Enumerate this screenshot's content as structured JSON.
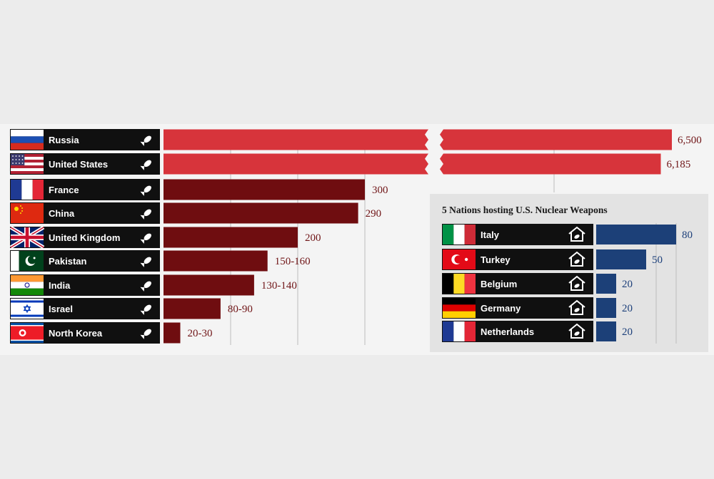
{
  "colors": {
    "background": "#ececec",
    "panel": "#f4f4f4",
    "inset_panel": "#e3e3e3",
    "label_bg": "#101010",
    "big_bar": "#d7343b",
    "bar": "#6f0d10",
    "bar_value_text": "#6f1416",
    "host_bar": "#1c4078",
    "host_value_text": "#1c3f7a",
    "gridline": "#bdbdbd"
  },
  "chart_data": [
    {
      "type": "bar",
      "orientation": "horizontal",
      "title": "",
      "categories": [
        "Russia",
        "United States",
        "France",
        "China",
        "United Kingdom",
        "Pakistan",
        "India",
        "Israel",
        "North Korea"
      ],
      "values": [
        6500,
        6185,
        300,
        290,
        200,
        155,
        135,
        85,
        25
      ],
      "value_labels": [
        "6,500",
        "6,185",
        "300",
        "290",
        "200",
        "150-160",
        "130-140",
        "80-90",
        "20-30"
      ],
      "highlight": [
        "Russia",
        "United States"
      ],
      "axis_broken": true,
      "row_icon": "nuclear-bomb-icon",
      "grid": true
    },
    {
      "type": "bar",
      "orientation": "horizontal",
      "title": "5 Nations hosting U.S. Nuclear Weapons",
      "categories": [
        "Italy",
        "Turkey",
        "Belgium",
        "Germany",
        "Netherlands"
      ],
      "values": [
        80,
        50,
        20,
        20,
        20
      ],
      "value_labels": [
        "80",
        "50",
        "20",
        "20",
        "20"
      ],
      "row_icon": "house-with-bomb-icon",
      "grid": true
    }
  ]
}
